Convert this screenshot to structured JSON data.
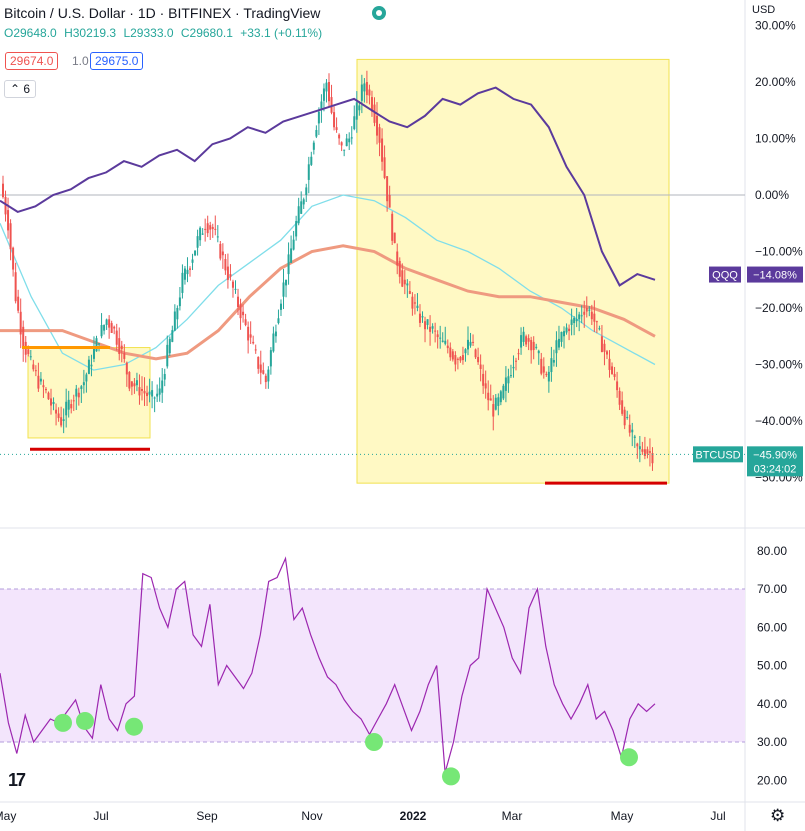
{
  "header": {
    "title": "Bitcoin / U.S. Dollar · 1D · BITFINEX · TradingView",
    "ohlc": {
      "open": "O29648.0",
      "high": "H30219.3",
      "low": "L29333.0",
      "close": "C29680.1",
      "change": "+33.1 (+0.11%)"
    },
    "bid": "29674.0",
    "spread": "1.0",
    "ask": "29675.0",
    "indicator_badge": "6",
    "currency": "USD"
  },
  "colors": {
    "up": "#26a69a",
    "down": "#ef5350",
    "qqq": "#5b3a9c",
    "ma_fast": "#80deea",
    "ma_slow": "#ef9a80",
    "highlight": "#fff9c4",
    "rsi": "#9c27b0",
    "rsi_band": "#f3e5fc",
    "support": "#d50000",
    "resistance": "#ff9800",
    "dot": "#76e776"
  },
  "chart_data": [
    {
      "type": "line",
      "title": "",
      "y_unit": "%",
      "ylim": [
        -50,
        30
      ],
      "y_ticks": [
        "30.00%",
        "20.00%",
        "10.00%",
        "0.00%",
        "−10.00%",
        "−20.00%",
        "−30.00%",
        "−40.00%",
        "−50.00%"
      ],
      "x_ticks": [
        "May",
        "Jul",
        "Sep",
        "Nov",
        "2022",
        "Mar",
        "May",
        "Jul"
      ],
      "series": [
        {
          "name": "BTCUSD",
          "style": "candles",
          "last_label": "BTCUSD",
          "last_value": "−45.90%",
          "countdown": "03:24:02",
          "values": [
            2,
            -5,
            -18,
            -26,
            -30,
            -33,
            -35,
            -38,
            -40,
            -37,
            -35,
            -33,
            -29,
            -25,
            -22,
            -24,
            -28,
            -33,
            -34,
            -35,
            -36,
            -35,
            -28,
            -22,
            -15,
            -12,
            -8,
            -5,
            -6,
            -10,
            -14,
            -18,
            -22,
            -26,
            -30,
            -33,
            -25,
            -18,
            -12,
            -5,
            0,
            8,
            15,
            20,
            12,
            8,
            10,
            15,
            20,
            16,
            10,
            0,
            -10,
            -15,
            -18,
            -21,
            -23,
            -24,
            -26,
            -27,
            -29,
            -28,
            -26,
            -30,
            -35,
            -38,
            -36,
            -32,
            -28,
            -25,
            -26,
            -29,
            -33,
            -28,
            -25,
            -23,
            -22,
            -20,
            -21,
            -25,
            -29,
            -33,
            -38,
            -42,
            -45,
            -45,
            -46
          ]
        },
        {
          "name": "QQQ",
          "style": "line",
          "last_label": "QQQ",
          "last_value": "−14.08%",
          "values": [
            -1,
            -3,
            -2,
            0,
            1,
            3,
            4,
            6,
            5,
            7,
            8,
            6,
            9,
            10,
            12,
            11,
            13,
            14,
            15,
            16,
            17,
            15,
            13,
            12,
            14,
            17,
            16,
            18,
            19,
            17,
            16,
            12,
            5,
            0,
            -10,
            -16,
            -14,
            -15
          ]
        },
        {
          "name": "MA fast",
          "style": "line",
          "values": [
            -5,
            -18,
            -28,
            -31,
            -30,
            -27,
            -22,
            -16,
            -12,
            -8,
            -2,
            0,
            -1,
            -4,
            -8,
            -10,
            -13,
            -17,
            -20,
            -24,
            -27,
            -30
          ]
        },
        {
          "name": "MA slow",
          "style": "line",
          "values": [
            -24,
            -24,
            -24,
            -26,
            -28,
            -29,
            -28,
            -24,
            -18,
            -13,
            -10,
            -9,
            -10,
            -13,
            -15,
            -17,
            -18,
            -18,
            -19,
            -20,
            -22,
            -25
          ]
        }
      ],
      "annotations": [
        {
          "type": "box",
          "x_range": [
            "May",
            "Jul"
          ],
          "y_range": [
            -27,
            -43
          ]
        },
        {
          "type": "box",
          "x_range": [
            "Nov",
            "May"
          ],
          "y_range": [
            24,
            -51
          ]
        },
        {
          "type": "hline",
          "level": -45
        },
        {
          "type": "hline",
          "level": -51
        },
        {
          "type": "hline",
          "level": -27
        }
      ]
    },
    {
      "type": "line",
      "title": "",
      "ylim": [
        15,
        82
      ],
      "y_ticks": [
        "80.00",
        "70.00",
        "60.00",
        "50.00",
        "40.00",
        "30.00",
        "20.00"
      ],
      "band": [
        30,
        70
      ],
      "series": [
        {
          "name": "",
          "values": [
            48,
            35,
            27,
            37,
            30,
            33,
            36,
            35,
            38,
            41,
            34,
            31,
            45,
            36,
            33,
            40,
            42,
            74,
            73,
            65,
            60,
            70,
            72,
            58,
            55,
            66,
            45,
            50,
            47,
            44,
            48,
            58,
            72,
            73,
            78,
            62,
            65,
            58,
            52,
            47,
            45,
            41,
            38,
            36,
            32,
            36,
            40,
            45,
            39,
            33,
            38,
            45,
            50,
            22,
            30,
            42,
            50,
            52,
            70,
            65,
            60,
            52,
            48,
            65,
            70,
            55,
            45,
            40,
            36,
            40,
            45,
            36,
            38,
            33,
            26,
            36,
            40,
            38,
            40
          ]
        }
      ],
      "markers": [
        35,
        35.5,
        34,
        30,
        21,
        26
      ]
    }
  ]
}
